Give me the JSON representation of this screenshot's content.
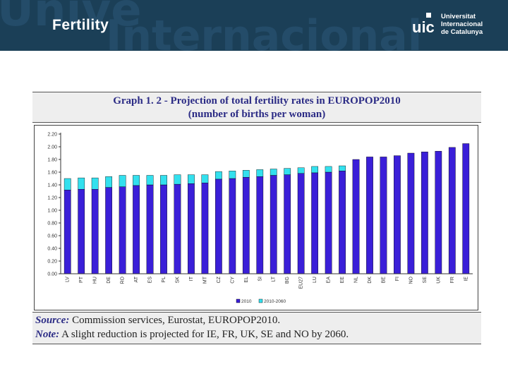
{
  "header": {
    "title": "Fertility",
    "watermark": [
      "Unive",
      "Internacional"
    ],
    "logo": {
      "mark": "uic",
      "lines": [
        "Universitat",
        "Internacional",
        "de Catalunya"
      ]
    }
  },
  "chart_data": {
    "type": "bar",
    "stacked": true,
    "title": "Graph 1. 2 - Projection of total fertility rates in EUROPOP2010",
    "subtitle": "(number of births per woman)",
    "xlabel": "",
    "ylabel": "",
    "ylim": [
      0,
      2.2
    ],
    "yticks": [
      "0.00",
      "0.20",
      "0.40",
      "0.60",
      "0.80",
      "1.00",
      "1.20",
      "1.40",
      "1.60",
      "1.80",
      "2.00",
      "2.20"
    ],
    "grid": false,
    "legend_position": "bottom-right",
    "categories": [
      "LV",
      "PT",
      "HU",
      "DE",
      "RO",
      "AT",
      "ES",
      "PL",
      "SK",
      "IT",
      "MT",
      "CZ",
      "CY",
      "EL",
      "SI",
      "LT",
      "BG",
      "EU27",
      "LU",
      "EA",
      "EE",
      "NL",
      "DK",
      "BE",
      "FI",
      "NO",
      "SE",
      "UK",
      "FR",
      "IE"
    ],
    "series": [
      {
        "name": "2010",
        "color": "#3a1fd8",
        "values": [
          1.32,
          1.33,
          1.33,
          1.36,
          1.37,
          1.39,
          1.4,
          1.4,
          1.41,
          1.42,
          1.43,
          1.49,
          1.5,
          1.52,
          1.53,
          1.55,
          1.56,
          1.58,
          1.59,
          1.6,
          1.62,
          1.8,
          1.84,
          1.84,
          1.86,
          1.9,
          1.92,
          1.93,
          1.99,
          2.05
        ]
      },
      {
        "name": "2010-2060",
        "color": "#33e0ee",
        "values": [
          0.18,
          0.18,
          0.18,
          0.17,
          0.18,
          0.16,
          0.15,
          0.15,
          0.15,
          0.14,
          0.13,
          0.12,
          0.12,
          0.11,
          0.11,
          0.1,
          0.1,
          0.09,
          0.1,
          0.09,
          0.08,
          0,
          0,
          0,
          0,
          0,
          0,
          0,
          0,
          0
        ]
      }
    ]
  },
  "notes": {
    "source_label": "Source:",
    "source_text": " Commission services, Eurostat, EUROPOP2010.",
    "note_label": "Note:",
    "note_text": " A slight reduction is projected for IE, FR, UK, SE and NO by 2060."
  }
}
